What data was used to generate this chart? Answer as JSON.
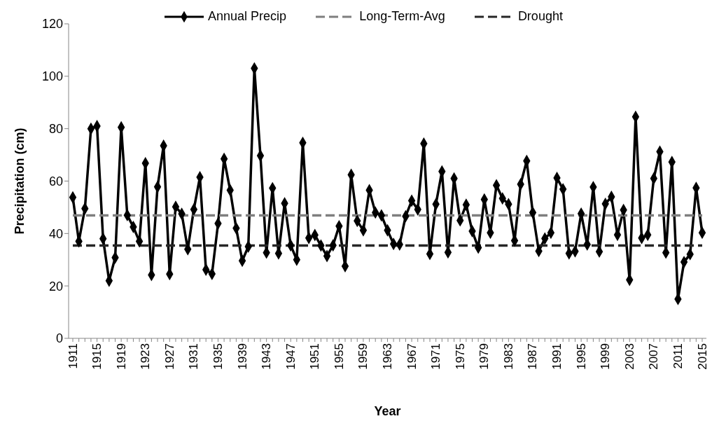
{
  "chart_data": {
    "type": "line",
    "xlabel": "Year",
    "ylabel": "Precipitation (cm)",
    "categories": [
      "1911",
      null,
      null,
      null,
      "1915",
      null,
      null,
      null,
      "1919",
      null,
      null,
      null,
      "1923",
      null,
      null,
      null,
      "1927",
      null,
      null,
      null,
      "1931",
      null,
      null,
      null,
      "1935",
      null,
      null,
      null,
      "1939",
      null,
      null,
      null,
      "1943",
      null,
      null,
      null,
      "1947",
      null,
      null,
      null,
      "1951",
      null,
      null,
      null,
      "1955",
      null,
      null,
      null,
      "1959",
      null,
      null,
      null,
      "1963",
      null,
      null,
      null,
      "1967",
      null,
      null,
      null,
      "1971",
      null,
      null,
      null,
      "1975",
      null,
      null,
      null,
      "1979",
      null,
      null,
      null,
      "1983",
      null,
      null,
      null,
      "1987",
      null,
      null,
      null,
      "1991",
      null,
      null,
      null,
      "1995",
      null,
      null,
      null,
      "1999",
      null,
      null,
      null,
      "2003",
      null,
      null,
      null,
      "2007",
      null,
      null,
      null,
      "2011",
      null,
      null,
      null,
      "2015"
    ],
    "series": [
      {
        "name": "Annual Precip",
        "color": "#000000",
        "marker": "diamond",
        "line_style": "solid",
        "values": [
          53.8,
          37,
          49.5,
          80,
          81,
          38,
          22,
          30.8,
          80.5,
          47,
          42.5,
          37,
          66.8,
          24.2,
          57.8,
          73.5,
          24.5,
          50.2,
          47.5,
          34,
          49.2,
          61.5,
          26.2,
          24.6,
          43.8,
          68.5,
          56.5,
          42,
          29.6,
          35,
          103,
          69.7,
          32.7,
          57.3,
          32.4,
          51.5,
          35.5,
          30,
          74.6,
          38.3,
          39.4,
          35.4,
          31.4,
          35.5,
          42.8,
          27.5,
          62.4,
          44.8,
          41.2,
          56.5,
          48,
          46.9,
          41.2,
          36,
          35.8,
          46.6,
          52.5,
          49.2,
          74.3,
          32.2,
          51.2,
          63.7,
          32.8,
          61,
          45,
          51,
          40.9,
          34.6,
          53,
          40.3,
          58.4,
          53.4,
          51.2,
          37.3,
          58.8,
          67.7,
          48,
          33.3,
          38.1,
          40.3,
          61.2,
          56.9,
          32.4,
          33.2,
          47.6,
          35.8,
          57.7,
          33.1,
          51.3,
          54,
          39.5,
          49,
          22.3,
          84.5,
          38.3,
          39.5,
          61,
          71.2,
          32.7,
          67.3,
          15,
          29.1,
          32.1,
          57.4,
          40.3
        ]
      },
      {
        "name": "Long-Term-Avg",
        "color": "#7f7f7f",
        "marker": "none",
        "line_style": "dashed",
        "values": [
          46.9,
          46.9,
          46.9,
          46.9,
          46.9,
          46.9,
          46.9,
          46.9,
          46.9,
          46.9,
          46.9,
          46.9,
          46.9,
          46.9,
          46.9,
          46.9,
          46.9,
          46.9,
          46.9,
          46.9,
          46.9,
          46.9,
          46.9,
          46.9,
          46.9,
          46.9,
          46.9,
          46.9,
          46.9,
          46.9,
          46.9,
          46.9,
          46.9,
          46.9,
          46.9,
          46.9,
          46.9,
          46.9,
          46.9,
          46.9,
          46.9,
          46.9,
          46.9,
          46.9,
          46.9,
          46.9,
          46.9,
          46.9,
          46.9,
          46.9,
          46.9,
          46.9,
          46.9,
          46.9,
          46.9,
          46.9,
          46.9,
          46.9,
          46.9,
          46.9,
          46.9,
          46.9,
          46.9,
          46.9,
          46.9,
          46.9,
          46.9,
          46.9,
          46.9,
          46.9,
          46.9,
          46.9,
          46.9,
          46.9,
          46.9,
          46.9,
          46.9,
          46.9,
          46.9,
          46.9,
          46.9,
          46.9,
          46.9,
          46.9,
          46.9,
          46.9,
          46.9,
          46.9,
          46.9,
          46.9,
          46.9,
          46.9,
          46.9,
          46.9,
          46.9,
          46.9,
          46.9,
          46.9,
          46.9,
          46.9,
          46.9,
          46.9,
          46.9,
          46.9,
          46.9
        ]
      },
      {
        "name": "Drought",
        "color": "#262626",
        "marker": "none",
        "line_style": "dashed",
        "values": [
          35.4,
          35.4,
          35.4,
          35.4,
          35.4,
          35.4,
          35.4,
          35.4,
          35.4,
          35.4,
          35.4,
          35.4,
          35.4,
          35.4,
          35.4,
          35.4,
          35.4,
          35.4,
          35.4,
          35.4,
          35.4,
          35.4,
          35.4,
          35.4,
          35.4,
          35.4,
          35.4,
          35.4,
          35.4,
          35.4,
          35.4,
          35.4,
          35.4,
          35.4,
          35.4,
          35.4,
          35.4,
          35.4,
          35.4,
          35.4,
          35.4,
          35.4,
          35.4,
          35.4,
          35.4,
          35.4,
          35.4,
          35.4,
          35.4,
          35.4,
          35.4,
          35.4,
          35.4,
          35.4,
          35.4,
          35.4,
          35.4,
          35.4,
          35.4,
          35.4,
          35.4,
          35.4,
          35.4,
          35.4,
          35.4,
          35.4,
          35.4,
          35.4,
          35.4,
          35.4,
          35.4,
          35.4,
          35.4,
          35.4,
          35.4,
          35.4,
          35.4,
          35.4,
          35.4,
          35.4,
          35.4,
          35.4,
          35.4,
          35.4,
          35.4,
          35.4,
          35.4,
          35.4,
          35.4,
          35.4,
          35.4,
          35.4,
          35.4,
          35.4,
          35.4,
          35.4,
          35.4,
          35.4,
          35.4,
          35.4,
          35.4,
          35.4,
          35.4,
          35.4,
          35.4
        ]
      }
    ],
    "ylim": [
      0,
      120
    ],
    "yticks": [
      0,
      20,
      40,
      60,
      80,
      100,
      120
    ],
    "grid": false,
    "legend": "top"
  }
}
